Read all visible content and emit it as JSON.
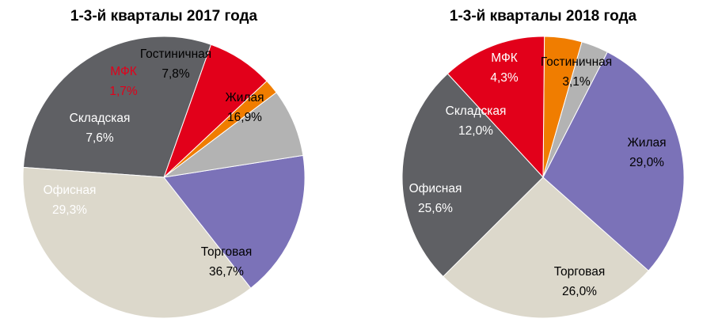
{
  "chart_data": [
    {
      "type": "pie",
      "title": "1-3-й кварталы 2017 года",
      "slices": [
        {
          "label": "Гостиничная",
          "value": 7.8,
          "display": "7,8%",
          "color": "#b3b3b3",
          "text_color": "#000000"
        },
        {
          "label": "Жилая",
          "value": 16.9,
          "display": "16,9%",
          "color": "#7b72b8",
          "text_color": "#000000"
        },
        {
          "label": "Торговая",
          "value": 36.7,
          "display": "36,7%",
          "color": "#dcd8cb",
          "text_color": "#000000"
        },
        {
          "label": "Офисная",
          "value": 29.3,
          "display": "29,3%",
          "color": "#5f6064",
          "text_color": "#ffffff"
        },
        {
          "label": "Складская",
          "value": 7.6,
          "display": "7,6%",
          "color": "#e2001a",
          "text_color": "#ffffff"
        },
        {
          "label": "МФК",
          "value": 1.7,
          "display": "1,7%",
          "color": "#f07d00",
          "text_color": "#e2001a"
        }
      ]
    },
    {
      "type": "pie",
      "title": "1-3-й кварталы 2018 года",
      "slices": [
        {
          "label": "Гостиничная",
          "value": 3.1,
          "display": "3,1%",
          "color": "#b3b3b3",
          "text_color": "#000000"
        },
        {
          "label": "Жилая",
          "value": 29.0,
          "display": "29,0%",
          "color": "#7b72b8",
          "text_color": "#000000"
        },
        {
          "label": "Торговая",
          "value": 26.0,
          "display": "26,0%",
          "color": "#dcd8cb",
          "text_color": "#000000"
        },
        {
          "label": "Офисная",
          "value": 25.6,
          "display": "25,6%",
          "color": "#5f6064",
          "text_color": "#ffffff"
        },
        {
          "label": "Складская",
          "value": 12.0,
          "display": "12,0%",
          "color": "#e2001a",
          "text_color": "#ffffff"
        },
        {
          "label": "МФК",
          "value": 4.3,
          "display": "4,3%",
          "color": "#f07d00",
          "text_color": "#ffffff"
        }
      ]
    }
  ]
}
